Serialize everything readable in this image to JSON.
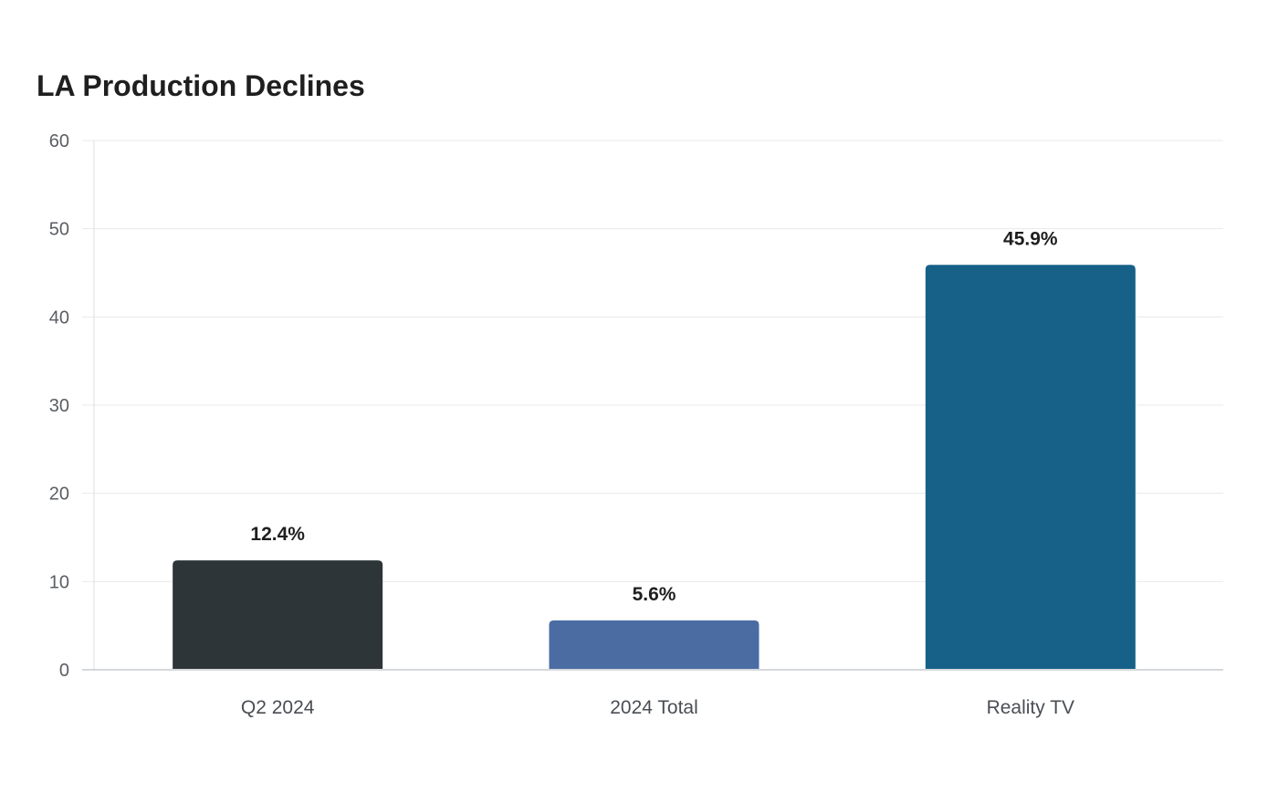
{
  "chart_data": {
    "type": "bar",
    "title": "LA Production Declines",
    "xlabel": "",
    "ylabel": "",
    "categories": [
      "Q2 2024",
      "2024 Total",
      "Reality TV"
    ],
    "values": [
      12.4,
      5.6,
      45.9
    ],
    "data_labels": [
      "12.4%",
      "5.6%",
      "45.9%"
    ],
    "colors": [
      "#2e3538",
      "#4a6ca3",
      "#176087"
    ],
    "ylim": [
      0,
      60
    ],
    "yticks": [
      0,
      10,
      20,
      30,
      40,
      50,
      60
    ],
    "grid": true,
    "legend": "none"
  }
}
